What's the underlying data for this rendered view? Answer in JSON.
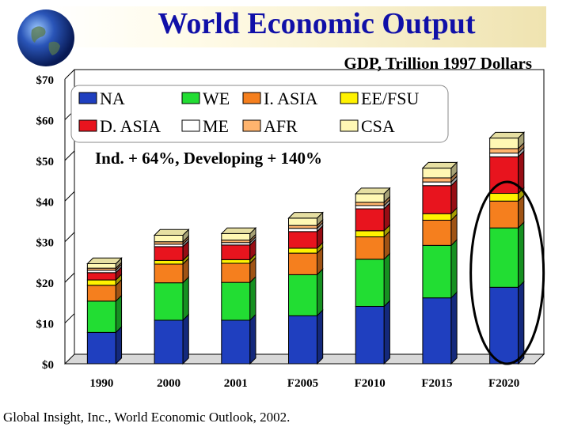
{
  "title": "World Economic Output",
  "source": "Global Insight, Inc., World Economic Outlook, 2002.",
  "icons": {
    "logo": "globe-icon"
  },
  "chart_data": {
    "type": "bar",
    "stacked": true,
    "title": "World Economic Output",
    "subtitle": "GDP, Trillion 1997 Dollars",
    "annotation": "Ind. + 64%,  Developing + 140%",
    "highlight": "F2020",
    "categories": [
      "1990",
      "2000",
      "2001",
      "F2005",
      "F2010",
      "F2015",
      "F2020"
    ],
    "ylim": [
      0,
      70
    ],
    "yticks": [
      0,
      10,
      20,
      30,
      40,
      50,
      60,
      70
    ],
    "ytick_labels": [
      "$0",
      "$10",
      "$20",
      "$30",
      "$40",
      "$50",
      "$60",
      "$70"
    ],
    "grid": true,
    "legend": "top-left",
    "series": [
      {
        "name": "NA",
        "color": "#1f3fbf",
        "values": [
          7.7,
          10.7,
          10.7,
          11.8,
          14.1,
          16.2,
          18.8
        ]
      },
      {
        "name": "WE",
        "color": "#22dd33",
        "values": [
          7.7,
          9.2,
          9.3,
          10.1,
          11.6,
          12.9,
          14.6
        ]
      },
      {
        "name": "I. ASIA",
        "color": "#f57f1e",
        "values": [
          3.9,
          4.6,
          4.7,
          5.3,
          5.5,
          6.2,
          6.6
        ]
      },
      {
        "name": "EE/FSU",
        "color": "#fff200",
        "values": [
          1.3,
          0.9,
          0.9,
          1.2,
          1.5,
          1.6,
          1.9
        ]
      },
      {
        "name": "D. ASIA",
        "color": "#e8141e",
        "values": [
          1.8,
          3.4,
          3.6,
          4.1,
          5.4,
          6.9,
          9.0
        ]
      },
      {
        "name": "ME",
        "color": "#ffffff",
        "values": [
          0.6,
          0.6,
          0.6,
          0.8,
          0.8,
          0.9,
          0.9
        ]
      },
      {
        "name": "AFR",
        "color": "#ffb46e",
        "values": [
          0.5,
          0.6,
          0.6,
          0.7,
          0.8,
          1.0,
          1.1
        ]
      },
      {
        "name": "CSA",
        "color": "#fff8b4",
        "values": [
          1.1,
          1.6,
          1.6,
          1.8,
          2.1,
          2.4,
          2.6
        ]
      }
    ]
  }
}
